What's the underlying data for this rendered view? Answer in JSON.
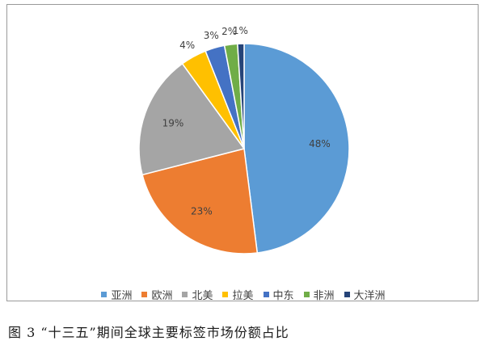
{
  "chart_data": {
    "type": "pie",
    "categories": [
      "亚洲",
      "欧洲",
      "北美",
      "拉美",
      "中东",
      "非洲",
      "大洋洲"
    ],
    "values": [
      48,
      23,
      19,
      4,
      3,
      2,
      1
    ],
    "labels": [
      "48%",
      "23%",
      "19%",
      "4%",
      "3%",
      "2%",
      "1%"
    ],
    "colors": [
      "#5B9BD5",
      "#ED7D31",
      "#A5A5A5",
      "#FFC000",
      "#4472C4",
      "#70AD47",
      "#264478"
    ],
    "legend_position": "bottom"
  },
  "caption": "图 3  “十三五”期间全球主要标签市场份额占比"
}
